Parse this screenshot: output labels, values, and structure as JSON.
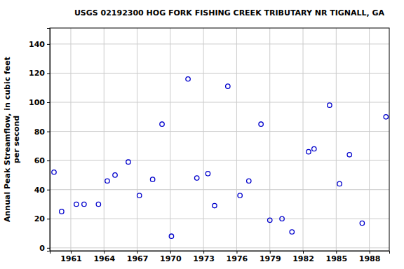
{
  "chart_data": {
    "type": "scatter",
    "title": "USGS 02192300 HOG FORK FISHING CREEK TRIBUTARY NR TIGNALL, GA",
    "y_label": [
      "Annual Peak Streamflow, in cubic feet",
      "per second"
    ],
    "x": [
      1959.48,
      1960.17,
      1961.5,
      1962.2,
      1963.5,
      1964.3,
      1965.0,
      1966.2,
      1967.2,
      1968.4,
      1969.25,
      1970.1,
      1971.6,
      1972.4,
      1973.4,
      1974.0,
      1975.2,
      1976.3,
      1977.1,
      1978.2,
      1979.0,
      1980.1,
      1981.0,
      1982.5,
      1983.0,
      1984.4,
      1985.3,
      1986.2,
      1987.35,
      1989.5
    ],
    "values": [
      52,
      25,
      30,
      30,
      30,
      46,
      50,
      59,
      36,
      47,
      85,
      8,
      116,
      48,
      51,
      29,
      111,
      36,
      46,
      85,
      19,
      20,
      11,
      66,
      68,
      98,
      44,
      64,
      17,
      90
    ],
    "color": "#0000cc",
    "marker": "open-circle",
    "xlim": [
      1959.1,
      1989.8
    ],
    "xticks": [
      1961,
      1964,
      1967,
      1970,
      1973,
      1976,
      1979,
      1982,
      1985,
      1988
    ],
    "ylim": [
      -2,
      151
    ],
    "yticks": [
      0,
      20,
      40,
      60,
      80,
      100,
      120,
      140
    ],
    "grid": true
  }
}
